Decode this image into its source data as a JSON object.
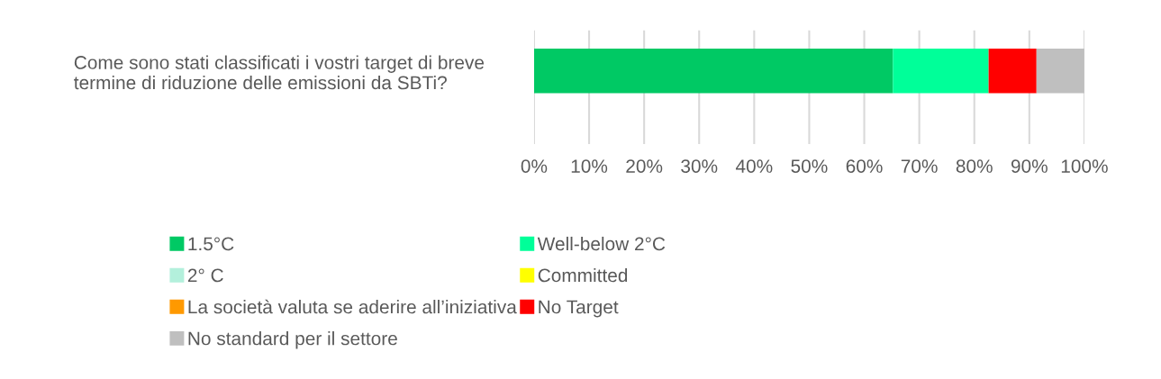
{
  "chart_data": {
    "type": "bar",
    "orientation": "horizontal",
    "stacked": true,
    "categories": [
      "Come sono stati classificati i vostri target di breve\ntermine di riduzione delle emissioni da SBTi?"
    ],
    "series": [
      {
        "name": "1.5°C",
        "color": "#00c964",
        "values": [
          65.2
        ]
      },
      {
        "name": "Well-below 2°C",
        "color": "#00ff99",
        "values": [
          17.4
        ]
      },
      {
        "name": "2° C",
        "color": "#b3f0dc",
        "values": [
          0
        ]
      },
      {
        "name": "Committed",
        "color": "#ffff00",
        "values": [
          0
        ]
      },
      {
        "name": "La società valuta se aderire all’iniziativa",
        "color": "#ff9900",
        "values": [
          0
        ]
      },
      {
        "name": "No Target",
        "color": "#ff0000",
        "values": [
          8.7
        ]
      },
      {
        "name": "No standard per il settore",
        "color": "#bfbfbf",
        "values": [
          8.7
        ]
      }
    ],
    "xlim": [
      0,
      100
    ],
    "xticks": [
      {
        "value": 0,
        "label": "0%"
      },
      {
        "value": 10,
        "label": "10%"
      },
      {
        "value": 20,
        "label": "20%"
      },
      {
        "value": 30,
        "label": "30%"
      },
      {
        "value": 40,
        "label": "40%"
      },
      {
        "value": 50,
        "label": "50%"
      },
      {
        "value": 60,
        "label": "60%"
      },
      {
        "value": 70,
        "label": "70%"
      },
      {
        "value": 80,
        "label": "80%"
      },
      {
        "value": 90,
        "label": "90%"
      },
      {
        "value": 100,
        "label": "100%"
      }
    ],
    "grid": "x",
    "legend": "bottom"
  }
}
